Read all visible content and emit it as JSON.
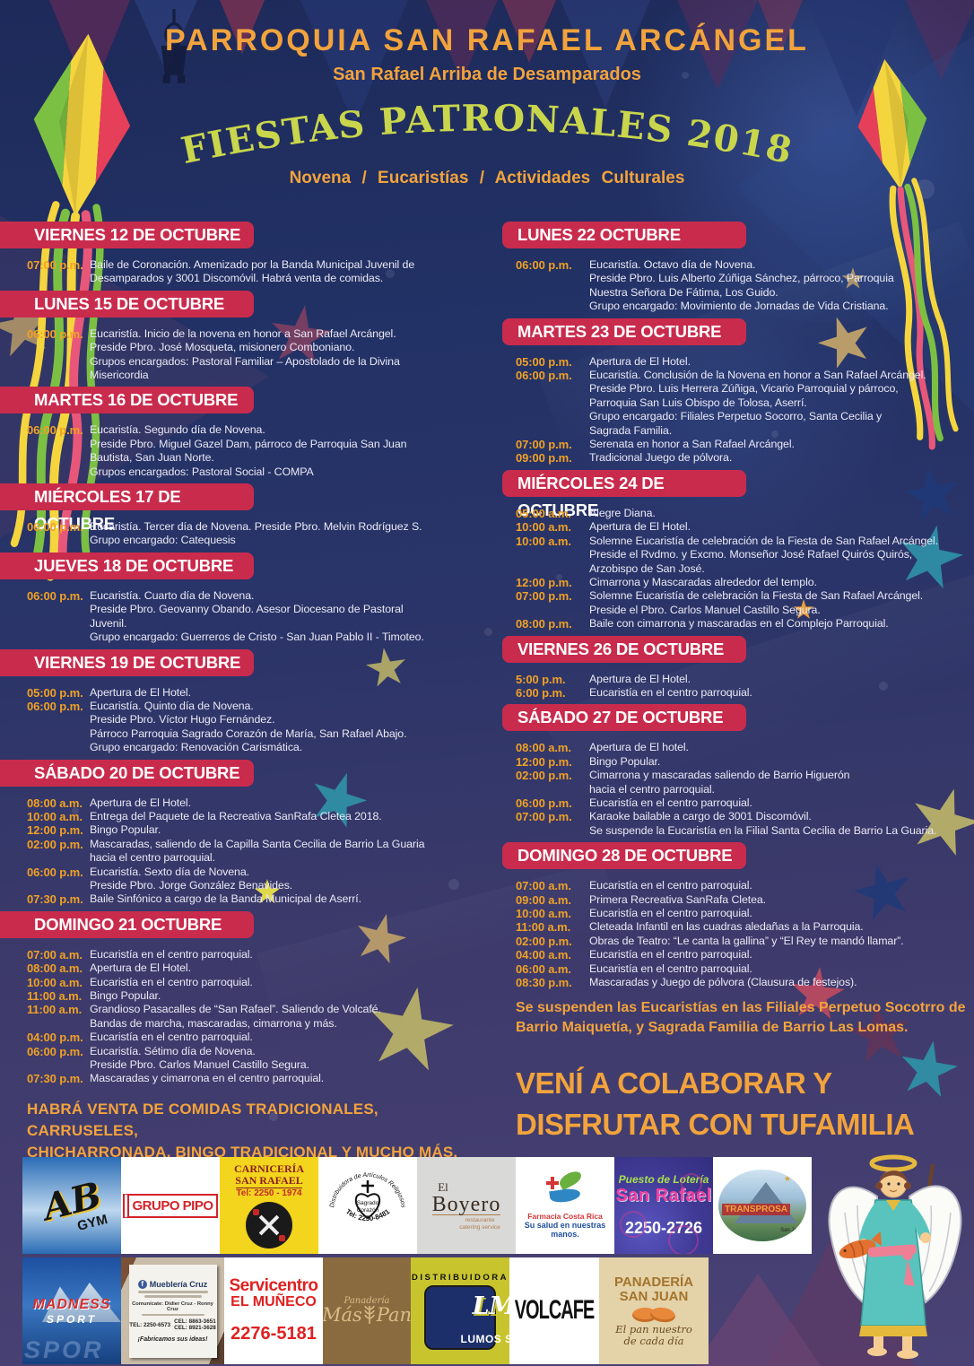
{
  "colors": {
    "accent_orange": "#F2A33C",
    "bar_red": "#C92B4D",
    "arc_green": "#C9D64C",
    "time_orange": "#F0A125"
  },
  "header": {
    "parish": "PARROQUIA SAN RAFAEL ARCÁNGEL",
    "location": "San Rafael Arriba de Desamparados",
    "title": "FIESTAS PATRONALES 2018",
    "tagline": "Novena / Eucaristías / Actividades Culturales"
  },
  "schedule": {
    "left": {
      "sections": [
        {
          "title": "VIERNES 12 DE OCTUBRE",
          "rows": [
            {
              "time": "07:00 p.m.",
              "text": "Baile de Coronación. Amenizado por la Banda Municipal Juvenil de\nDesamparados y 3001 Discomóvil.  Habrá venta de comidas."
            }
          ]
        },
        {
          "title": "LUNES 15 DE OCTUBRE",
          "rows": [
            {
              "time": "06:00 p.m.",
              "text": "Eucaristía.  Inicio de la novena en honor a San Rafael Arcángel.\nPreside Pbro. José Mosqueta, misionero Comboniano.\nGrupos encargados: Pastoral Familiar – Apostolado de la Divina\nMisericordia"
            }
          ]
        },
        {
          "title": "MARTES 16 DE OCTUBRE",
          "rows": [
            {
              "time": "06:00 p.m.",
              "text": "Eucaristía.  Segundo día de Novena.\nPreside Pbro. Miguel Gazel Dam, párroco de Parroquia San Juan\nBautista, San Juan Norte.\nGrupos encargados: Pastoral Social - COMPA"
            }
          ]
        },
        {
          "title": "MIÉRCOLES 17 DE OCTUBRE",
          "rows": [
            {
              "time": "06:00 p.m.",
              "text": "Eucaristía.  Tercer día de Novena. Preside Pbro. Melvin Rodríguez S.\nGrupo encargado: Catequesis"
            }
          ]
        },
        {
          "title": "JUEVES 18 DE OCTUBRE",
          "rows": [
            {
              "time": "06:00 p.m.",
              "text": "Eucaristía.  Cuarto día de Novena.\nPreside Pbro. Geovanny Obando. Asesor Diocesano de Pastoral\nJuvenil.\nGrupo encargado: Guerreros de Cristo - San Juan Pablo II - Timoteo."
            }
          ]
        },
        {
          "title": "VIERNES 19 DE OCTUBRE",
          "rows": [
            {
              "time": "05:00 p.m.",
              "text": "Apertura de El Hotel."
            },
            {
              "time": "06:00 p.m.",
              "text": "Eucaristía.  Quinto día de Novena.\nPreside Pbro. Víctor Hugo Fernández.\nPárroco Parroquia Sagrado Corazón de María, San Rafael Abajo.\nGrupo encargado: Renovación Carismática."
            }
          ]
        },
        {
          "title": "SÁBADO 20 DE OCTUBRE",
          "rows": [
            {
              "time": "08:00 a.m.",
              "text": "Apertura de El Hotel."
            },
            {
              "time": "10:00 a.m.",
              "text": "Entrega del Paquete de la Recreativa SanRafa Cletea 2018."
            },
            {
              "time": "12:00 p.m.",
              "text": "Bingo Popular."
            },
            {
              "time": "02:00 p.m.",
              "text": "Mascaradas, saliendo de la Capilla Santa Cecilia de Barrio La Guaria\nhacia el centro parroquial."
            },
            {
              "time": "06:00 p.m.",
              "text": "Eucaristía.  Sexto día de Novena.\nPreside Pbro. Jorge González Benavides."
            },
            {
              "time": "07:30 p.m.",
              "text": "Baile Sinfónico a cargo de la Banda Municipal de Aserrí."
            }
          ]
        },
        {
          "title": "DOMINGO 21 OCTUBRE",
          "rows": [
            {
              "time": "07:00 a.m.",
              "text": "Eucaristía en el centro parroquial."
            },
            {
              "time": "08:00 a.m.",
              "text": "Apertura de El Hotel."
            },
            {
              "time": "10:00 a.m.",
              "text": "Eucaristía en el centro parroquial."
            },
            {
              "time": "11:00 a.m.",
              "text": "Bingo Popular."
            },
            {
              "time": "11:00 a.m.",
              "text": "Grandioso Pasacalles de “San Rafael”. Saliendo de Volcafé.\nBandas de marcha, mascaradas, cimarrona y más."
            },
            {
              "time": "04:00 p.m.",
              "text": "Eucaristía en el centro parroquial."
            },
            {
              "time": "06:00 p.m.",
              "text": "Eucaristía.  Sétimo día de Novena.\nPreside Pbro. Carlos Manuel Castillo Segura."
            },
            {
              "time": "07:30 p.m.",
              "text": "Mascaradas y cimarrona en el centro parroquial."
            }
          ]
        }
      ]
    },
    "right": {
      "sections": [
        {
          "title": "LUNES 22 OCTUBRE",
          "rows": [
            {
              "time": "06:00 p.m.",
              "text": "Eucaristía.  Octavo día de Novena.\nPreside Pbro. Luis Alberto Zúñiga Sánchez, párroco, Parroquia\nNuestra Señora De Fátima, Los Guido.\nGrupo encargado: Movimiento de Jornadas de Vida Cristiana."
            }
          ]
        },
        {
          "title": "MARTES 23 DE OCTUBRE",
          "rows": [
            {
              "time": "05:00 p.m.",
              "text": "Apertura de El Hotel."
            },
            {
              "time": "06:00 p.m.",
              "text": "Eucaristía.  Conclusión de la Novena en honor a San Rafael Arcángel.\nPreside Pbro. Luis Herrera Zúñiga, Vicario Parroquial y párroco,\nParroquia San Luis Obispo de Tolosa, Aserrí.\nGrupo encargado: Filiales Perpetuo Socorro, Santa Cecilia y\nSagrada Familia."
            },
            {
              "time": "07:00 p.m.",
              "text": "Serenata en honor a San Rafael Arcángel."
            },
            {
              "time": "09:00 p.m.",
              "text": "Tradicional Juego de pólvora."
            }
          ]
        },
        {
          "title": "MIÉRCOLES 24 DE OCTUBRE",
          "rows": [
            {
              "time": "05:00 a.m.",
              "text": "Alegre Diana."
            },
            {
              "time": "10:00 a.m.",
              "text": "Apertura de El Hotel."
            },
            {
              "time": "10:00 a.m.",
              "text": "Solemne Eucaristía de celebración de la Fiesta de San Rafael Arcángel.\nPreside el Rvdmo. y Excmo.  Monseñor José Rafael Quirós Quirós,\nArzobispo de San José."
            },
            {
              "time": "12:00 p.m.",
              "text": "Cimarrona y Mascaradas alrededor del templo."
            },
            {
              "time": "07:00 p.m.",
              "text": "Solemne Eucaristía de celebración la Fiesta de San Rafael Arcángel.\nPreside el Pbro. Carlos Manuel Castillo Segura."
            },
            {
              "time": "08:00 p.m.",
              "text": "Baile con cimarrona y mascaradas en el Complejo Parroquial."
            }
          ]
        },
        {
          "title": "VIERNES 26 DE OCTUBRE",
          "rows": [
            {
              "time": "5:00 p.m.",
              "text": "Apertura de El Hotel."
            },
            {
              "time": "6:00 p.m.",
              "text": "Eucaristía en el centro parroquial."
            }
          ]
        },
        {
          "title": "SÁBADO 27 DE OCTUBRE",
          "rows": [
            {
              "time": "08:00 a.m.",
              "text": "Apertura de El hotel."
            },
            {
              "time": "12:00 p.m.",
              "text": "Bingo Popular."
            },
            {
              "time": "02:00 p.m.",
              "text": "Cimarrona y mascaradas saliendo de Barrio Higuerón\nhacia el centro parroquial."
            },
            {
              "time": "06:00 p.m.",
              "text": "Eucaristía en el centro parroquial."
            },
            {
              "time": "07:00 p.m.",
              "text": "Karaoke bailable a cargo de 3001 Discomóvil.\nSe suspende la Eucaristía en la Filial Santa Cecilia de Barrio La Guaria."
            }
          ]
        },
        {
          "title": "DOMINGO 28 DE OCTUBRE",
          "rows": [
            {
              "time": "07:00 a.m.",
              "text": "Eucaristía en el centro parroquial."
            },
            {
              "time": "09:00 a.m.",
              "text": "Primera Recreativa SanRafa Cletea."
            },
            {
              "time": "10:00 a.m.",
              "text": "Eucaristía en el centro parroquial."
            },
            {
              "time": "11:00 a.m.",
              "text": "Cleteada Infantil en las cuadras aledañas a la Parroquia."
            },
            {
              "time": "02:00 p.m.",
              "text": "Obras de Teatro:  “Le canta la gallina” y “El Rey te mandó llamar”."
            },
            {
              "time": "04:00 a.m.",
              "text": "Eucaristía en el centro parroquial."
            },
            {
              "time": "06:00 a.m.",
              "text": "Eucaristía en el centro parroquial."
            },
            {
              "time": "08:30 p.m.",
              "text": "Mascaradas y Juego de pólvora (Clausura de festejos)."
            }
          ]
        }
      ]
    }
  },
  "notes": {
    "food": "HABRÁ VENTA DE COMIDAS TRADICIONALES, CARRUSELES,\nCHICHARRONADA, BINGO TRADICIONAL Y MUCHO MÁS.",
    "suspension": "Se suspenden las Eucaristías en las Filiales Perpetuo Socotrro de\nBarrio Maiquetía, y Sagrada Familia de Barrio Las Lomas.",
    "cta": "VENÍ A COLABORAR Y\nDISFRUTAR CON TUFAMILIA"
  },
  "sponsors": {
    "row1": [
      {
        "id": "ab-gym",
        "lines": [
          "AB",
          "GYM"
        ]
      },
      {
        "id": "grupo-pipo",
        "lines": [
          "GRUPO PIPO"
        ]
      },
      {
        "id": "carniceria-san-rafael",
        "lines": [
          "CARNICERÍA\nSAN RAFAEL",
          "Tel: 2250 - 1974"
        ]
      },
      {
        "id": "articulos-religiosos",
        "lines": [
          "Distribuidora de Artículos Religiosos",
          "Sagrado",
          "Corazón",
          "Tel: 2250-8481"
        ]
      },
      {
        "id": "el-boyero",
        "lines": [
          "El",
          "Boyero",
          "restaurante\ncatering service"
        ]
      },
      {
        "id": "farmacia-costa-rica",
        "lines": [
          "Farmacia Costa Rica",
          "Su salud en nuestras manos."
        ]
      },
      {
        "id": "loteria-san-rafael",
        "lines": [
          "Puesto de Lotería",
          "San Rafael",
          "2250-2726"
        ]
      },
      {
        "id": "transprosa",
        "lines": [
          "★★★★★",
          "TRANSPROSA",
          "San José, Costa Rica"
        ]
      }
    ],
    "row2": [
      {
        "id": "madness-sport",
        "lines": [
          "MADNESS",
          "SPORT",
          "SPOR"
        ]
      },
      {
        "id": "muebleria-cruz",
        "lines": [
          "Mueblería Cruz",
          "Comunícate: Didier Cruz - Ronny Cruz",
          "TEL: 2250-6573",
          "CEL: 8863-3651",
          "CEL: 8921-3628",
          "¡Fabricamos sus ideas!"
        ]
      },
      {
        "id": "servicentro-el-muneco",
        "lines": [
          "Servicentro",
          "EL MUÑECO",
          "2276-5181"
        ]
      },
      {
        "id": "mas-pan",
        "lines": [
          "Panadería",
          "Más",
          "Pan"
        ]
      },
      {
        "id": "lumos",
        "lines": [
          "DISTRIBUIDORA",
          "LM",
          "LUMOS S.A."
        ]
      },
      {
        "id": "volcafe",
        "lines": [
          "VOLCAFE"
        ]
      },
      {
        "id": "panaderia-san-juan",
        "lines": [
          "PANADERÍA\nSAN JUAN",
          "El pan nuestro\nde cada día"
        ]
      }
    ]
  }
}
